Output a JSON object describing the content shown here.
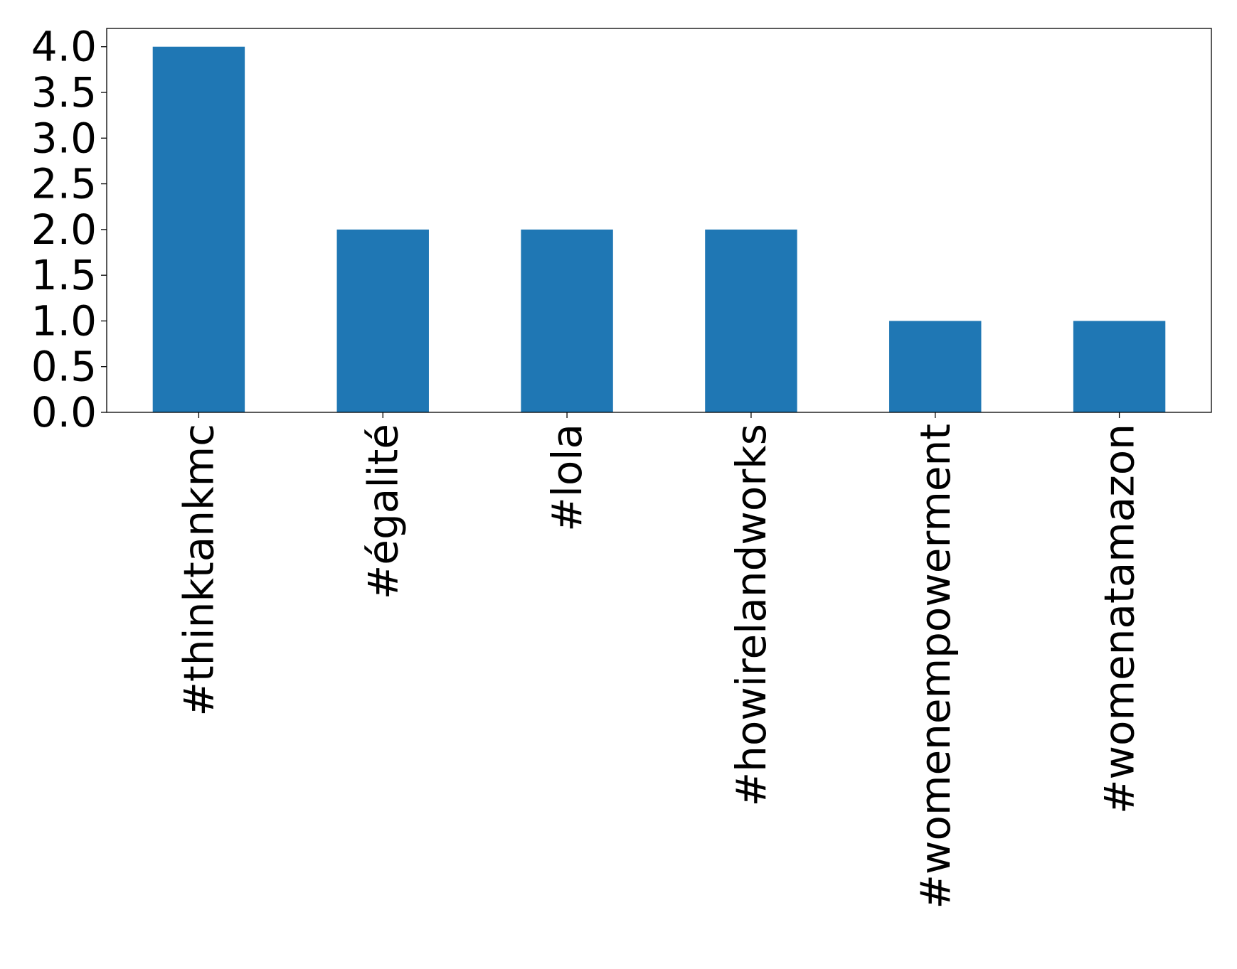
{
  "chart_data": {
    "type": "bar",
    "title": "",
    "xlabel": "",
    "ylabel": "",
    "categories": [
      "#thinktankmc",
      "#égalité",
      "#lola",
      "#howirelandworks",
      "#womenempowerment",
      "#womenatamazon"
    ],
    "values": [
      4,
      2,
      2,
      2,
      1,
      1
    ],
    "ylim": [
      0,
      4.2
    ],
    "yticks": [
      "0.0",
      "0.5",
      "1.0",
      "1.5",
      "2.0",
      "2.5",
      "3.0",
      "3.5",
      "4.0"
    ],
    "grid": false,
    "legend": "none",
    "bar_color": "#1f77b4",
    "axis_color": "#000000"
  }
}
